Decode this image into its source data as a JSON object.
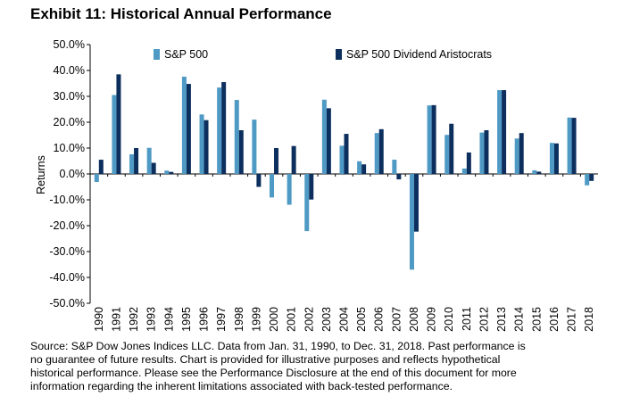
{
  "chart_data": {
    "type": "bar",
    "title": "Exhibit 11: Historical Annual Performance",
    "ylabel": "Returns",
    "xlabel": "",
    "ylim": [
      -50,
      50
    ],
    "ytick_step": 10,
    "ytick_labels": [
      "50.0%",
      "40.0%",
      "30.0%",
      "20.0%",
      "10.0%",
      "0.0%",
      "-10.0%",
      "-20.0%",
      "-30.0%",
      "-40.0%",
      "-50.0%"
    ],
    "grid": false,
    "legend_position": "top",
    "categories": [
      "1990",
      "1991",
      "1992",
      "1993",
      "1994",
      "1995",
      "1996",
      "1997",
      "1998",
      "1999",
      "2000",
      "2001",
      "2002",
      "2003",
      "2004",
      "2005",
      "2006",
      "2007",
      "2008",
      "2009",
      "2010",
      "2011",
      "2012",
      "2013",
      "2014",
      "2015",
      "2016",
      "2017",
      "2018"
    ],
    "series": [
      {
        "name": "S&P 500",
        "color": "#4f9ac4",
        "values": [
          -3.1,
          30.5,
          7.6,
          10.1,
          1.3,
          37.6,
          23.0,
          33.4,
          28.6,
          21.0,
          -9.1,
          -11.9,
          -22.1,
          28.7,
          10.9,
          4.9,
          15.8,
          5.5,
          -37.0,
          26.5,
          15.1,
          2.1,
          16.0,
          32.4,
          13.7,
          1.4,
          12.0,
          21.8,
          -4.4
        ]
      },
      {
        "name": "S&P 500 Dividend Aristocrats",
        "color": "#0d2f5e",
        "values": [
          5.5,
          38.5,
          10.0,
          4.3,
          0.8,
          34.8,
          20.8,
          35.5,
          16.9,
          -5.0,
          10.0,
          10.8,
          -9.9,
          25.4,
          15.5,
          3.7,
          17.3,
          -2.1,
          -22.3,
          26.6,
          19.4,
          8.3,
          16.9,
          32.4,
          15.8,
          0.9,
          11.8,
          21.7,
          -2.7
        ]
      }
    ]
  },
  "source_lines": [
    "Source: S&P Dow Jones Indices LLC.  Data from Jan. 31, 1990, to Dec. 31, 2018.  Past performance is",
    "no guarantee of future results.  Chart is provided for illustrative purposes and reflects hypothetical",
    "historical performance.  Please see the Performance Disclosure at the end of this document for more",
    "information regarding the inherent limitations associated with back-tested performance."
  ]
}
